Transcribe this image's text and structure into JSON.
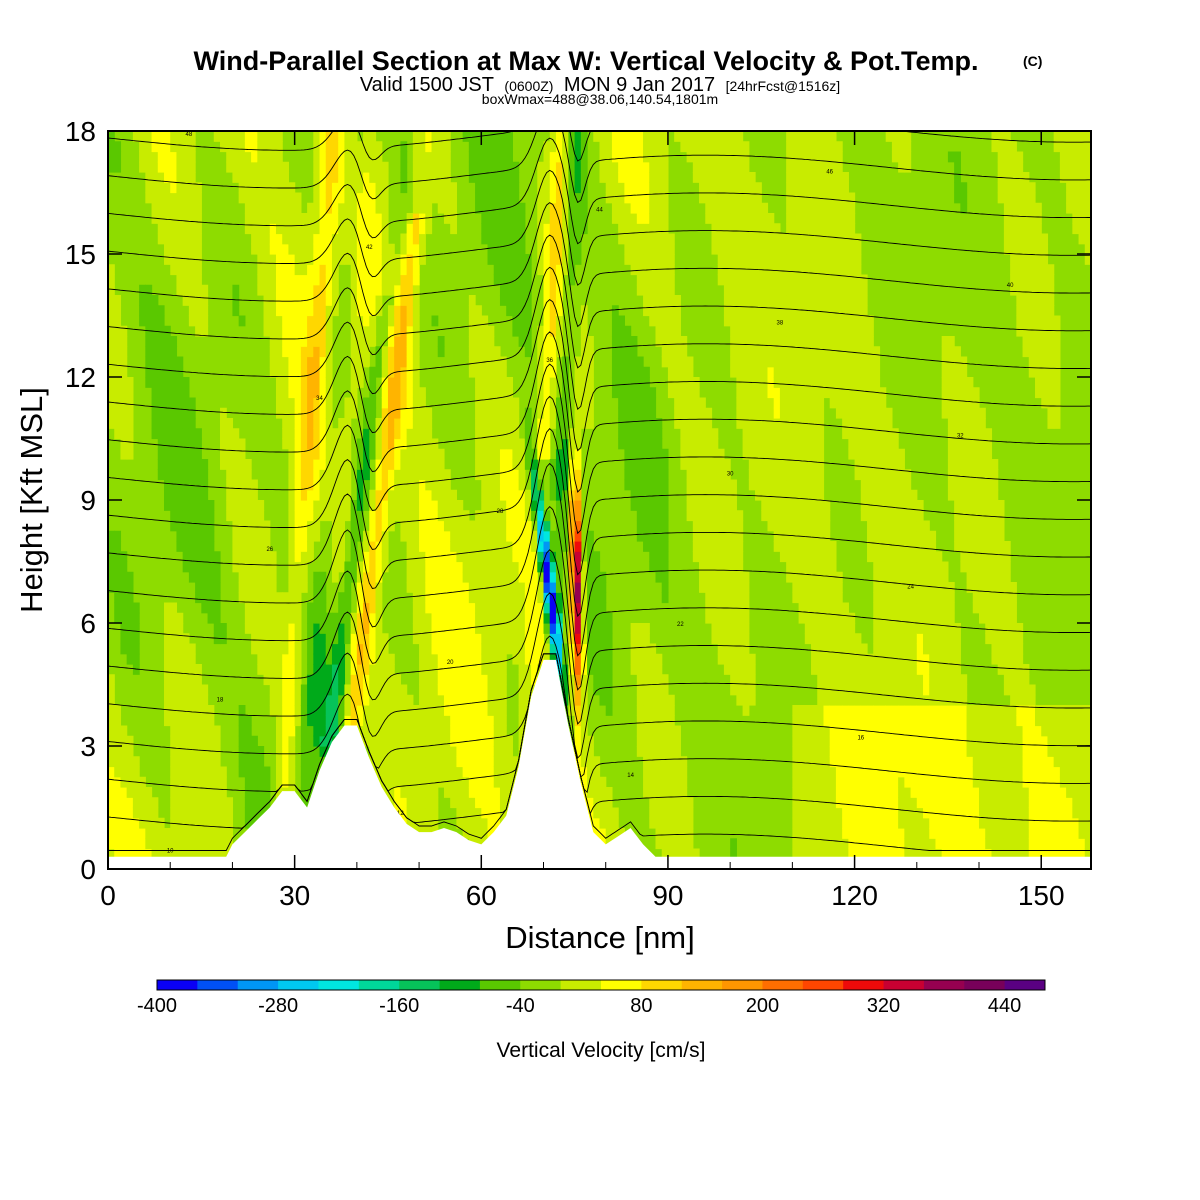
{
  "chart_data": {
    "type": "heatmap",
    "title": "Wind-Parallel Section at Max W: Vertical Velocity & Pot.Temp.",
    "title_mark": "(C)",
    "subtitle_parts": [
      "Valid 1500 JST",
      "(0600Z)",
      "MON 9 Jan 2017",
      "[24hrFcst@1516z]"
    ],
    "subtitle2": "boxWmax=488@38.06,140.54,1801m",
    "xlabel": "Distance [nm]",
    "ylabel": "Height [Kft MSL]",
    "xlim": [
      0,
      158
    ],
    "ylim": [
      0,
      18
    ],
    "xticks": [
      0,
      30,
      60,
      90,
      120,
      150
    ],
    "yticks": [
      0,
      3,
      6,
      9,
      12,
      15,
      18
    ],
    "terrain_kft": {
      "x": [
        0,
        19,
        20,
        22,
        24,
        26,
        28,
        30,
        32,
        34,
        36,
        38,
        40,
        42,
        44,
        46,
        48,
        50,
        52,
        54,
        56,
        58,
        60,
        62,
        64,
        66,
        68,
        70,
        72,
        74,
        76,
        78,
        80,
        82,
        84,
        86,
        88,
        90,
        92,
        94,
        96,
        98,
        100,
        158
      ],
      "h": [
        0.3,
        0.3,
        0.6,
        0.9,
        1.2,
        1.5,
        1.9,
        1.9,
        1.5,
        2.4,
        3.1,
        3.5,
        3.5,
        2.7,
        2.0,
        1.5,
        1.1,
        0.9,
        0.9,
        1.0,
        0.9,
        0.7,
        0.6,
        0.9,
        1.3,
        2.5,
        4.2,
        5.1,
        5.1,
        3.5,
        2.1,
        0.9,
        0.6,
        0.8,
        1.0,
        0.6,
        0.3,
        0.3,
        0.3,
        0.3,
        0.3,
        0.3,
        0.3,
        0.3
      ]
    },
    "colorbar": {
      "title": "Vertical Velocity [cm/s]",
      "colors": [
        "#0a00f5",
        "#0050f5",
        "#0096f5",
        "#00c8f0",
        "#00e6e0",
        "#00d79a",
        "#06c35a",
        "#00aa1a",
        "#5ac800",
        "#8edc00",
        "#c8ec00",
        "#ffff00",
        "#ffd700",
        "#ffb400",
        "#ff9600",
        "#ff6e00",
        "#ff4600",
        "#ee0a0a",
        "#c80032",
        "#960050",
        "#78005a",
        "#5a0082"
      ],
      "tick_labels": [
        "-400",
        "-280",
        "-160",
        "-40",
        "80",
        "200",
        "320",
        "440"
      ],
      "tick_values": [
        -400,
        -280,
        -160,
        -40,
        80,
        200,
        320,
        440
      ],
      "range": [
        -400,
        480
      ]
    },
    "theta_contours": {
      "label_every": 1,
      "levels": [
        10,
        12,
        14,
        16,
        18,
        20,
        22,
        24,
        26,
        28,
        30,
        32,
        34,
        36,
        38,
        40,
        42,
        44,
        46,
        48
      ]
    }
  }
}
